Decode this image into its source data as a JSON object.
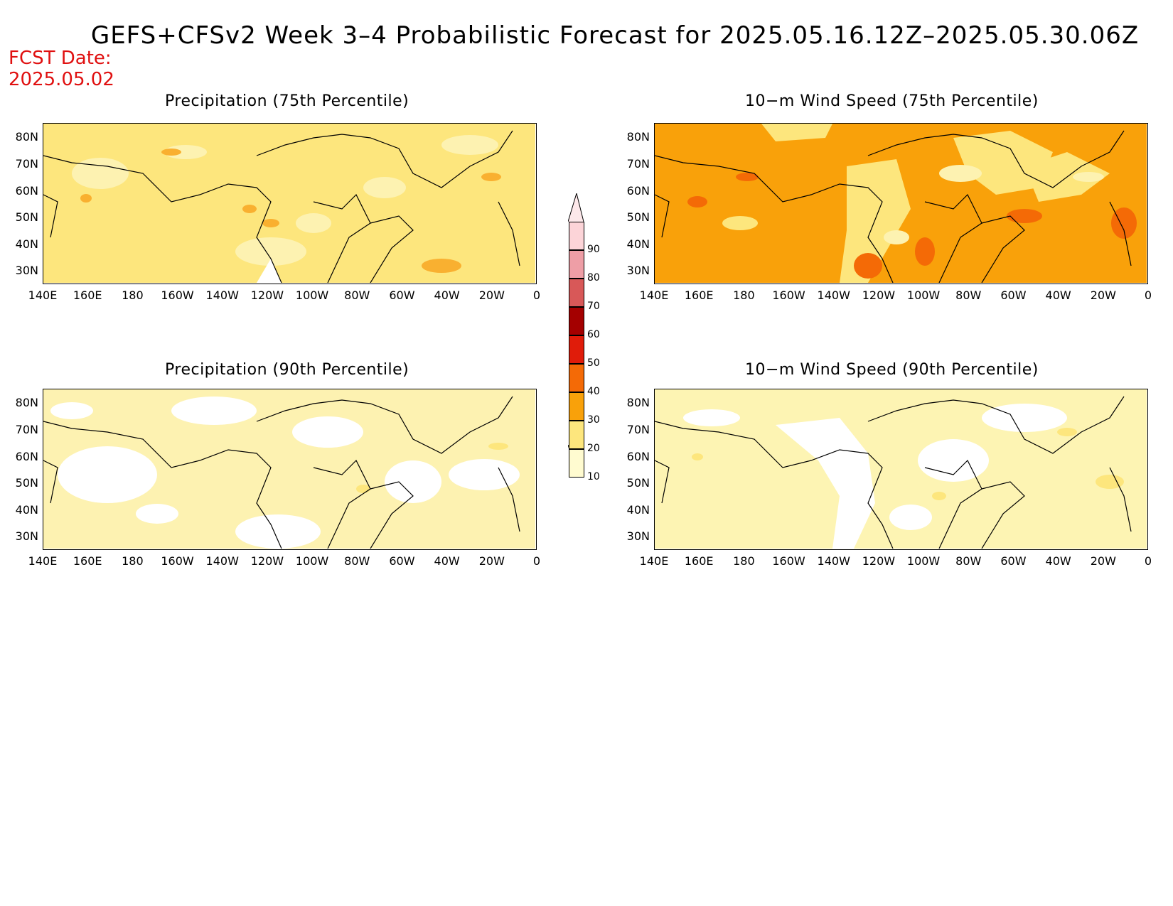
{
  "title": "GEFS+CFSv2 Week 3–4 Probabilistic Forecast for 2025.05.16.12Z–2025.05.30.06Z",
  "fcst_date": {
    "label": "FCST Date:",
    "value": "2025.05.02"
  },
  "lat_ticks": [
    "80N",
    "70N",
    "60N",
    "50N",
    "40N",
    "30N"
  ],
  "lon_ticks": [
    "140E",
    "160E",
    "180",
    "160W",
    "140W",
    "120W",
    "100W",
    "80W",
    "60W",
    "40W",
    "20W",
    "0"
  ],
  "panels": [
    {
      "title": "Precipitation (75th Percentile)",
      "base_color": "#fde67d"
    },
    {
      "title": "10−m Wind Speed (75th Percentile)",
      "base_color": "#f9a10a"
    },
    {
      "title": "Precipitation (90th Percentile)",
      "base_color": "#fdf2b1"
    },
    {
      "title": "10−m Wind Speed (90th Percentile)",
      "base_color": "#fdf4b3"
    }
  ],
  "colorbar": {
    "levels": [
      "10",
      "20",
      "30",
      "40",
      "50",
      "60",
      "70",
      "80",
      "90"
    ],
    "colors": [
      "#fffbd0",
      "#fde67d",
      "#f9a10a",
      "#f46a06",
      "#e01c0a",
      "#a40000",
      "#d85858",
      "#ee9ea6",
      "#fcd4d8"
    ]
  }
}
